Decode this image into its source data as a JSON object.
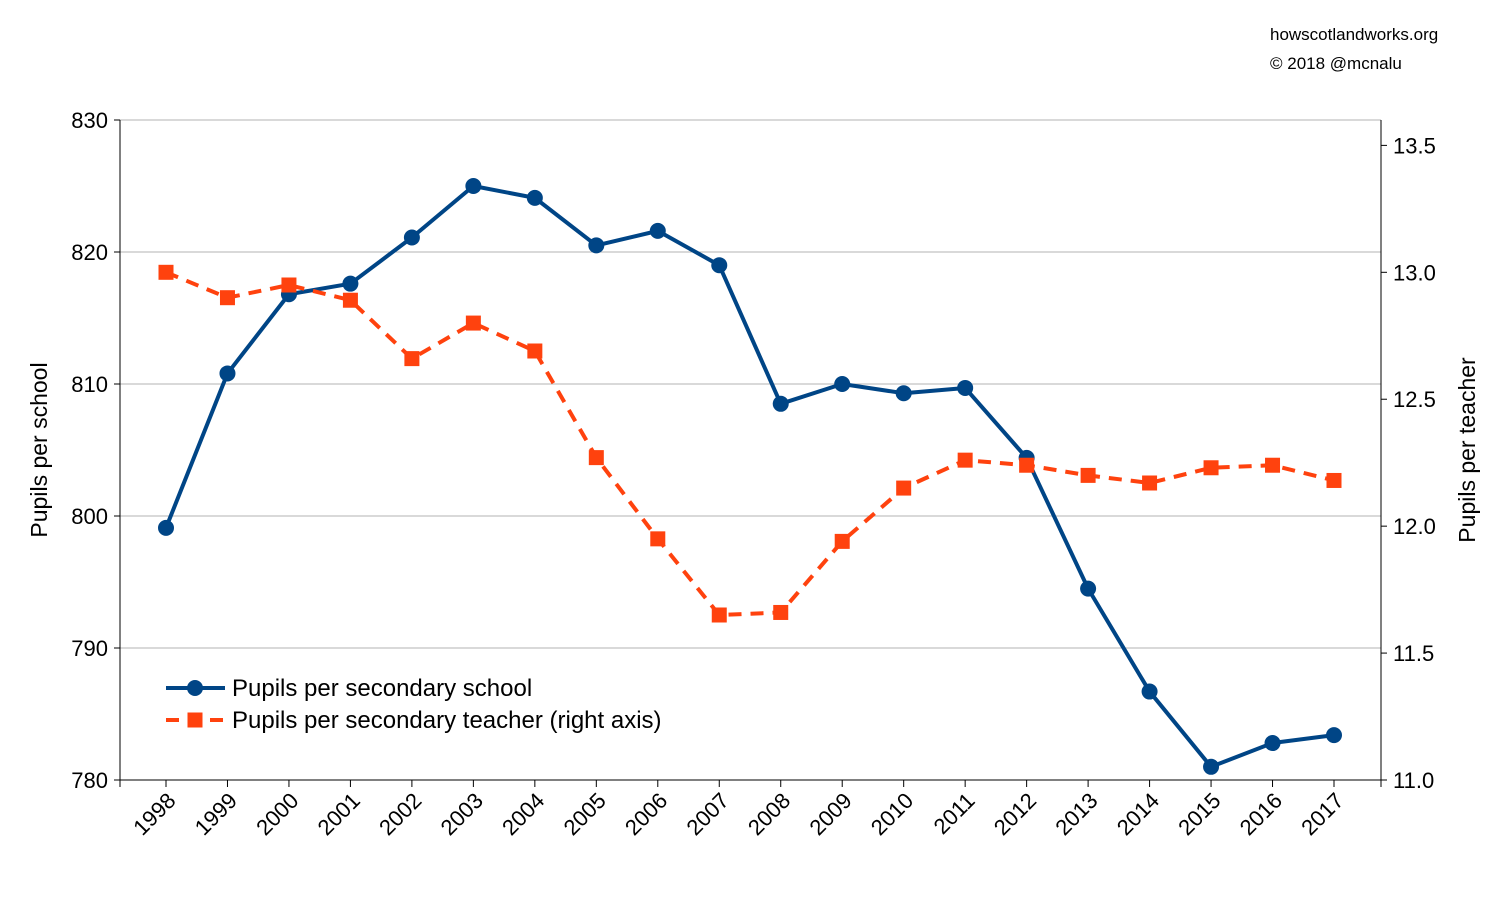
{
  "credits": {
    "line1": "howscotlandworks.org",
    "line2": "© 2018  @mcnalu"
  },
  "colors": {
    "school": "#004586",
    "teacher": "#ff420e",
    "grid": "#b3b3b3",
    "axis": "#000000"
  },
  "chart_data": {
    "type": "line",
    "x": [
      "1998",
      "1999",
      "2000",
      "2001",
      "2002",
      "2003",
      "2004",
      "2005",
      "2006",
      "2007",
      "2008",
      "2009",
      "2010",
      "2011",
      "2012",
      "2013",
      "2014",
      "2015",
      "2016",
      "2017"
    ],
    "ylabel": "Pupils per school",
    "ylabel_right": "Pupils per teacher",
    "ylim": [
      780,
      830
    ],
    "ylim_right": [
      11.0,
      13.6
    ],
    "yticks": [
      780,
      790,
      800,
      810,
      820,
      830
    ],
    "yticks_right": [
      "11.0",
      "11.5",
      "12.0",
      "12.5",
      "13.0",
      "13.5"
    ],
    "grid": true,
    "legend_position": "bottom-left",
    "series": [
      {
        "name": "Pupils per secondary school",
        "axis": "left",
        "marker": "circle",
        "line": "solid",
        "values": [
          799.1,
          810.8,
          816.8,
          817.6,
          821.1,
          825.0,
          824.1,
          820.5,
          821.6,
          819.0,
          808.5,
          810.0,
          809.3,
          809.7,
          804.4,
          794.5,
          786.7,
          781.0,
          782.8,
          783.4
        ]
      },
      {
        "name": "Pupils per secondary teacher (right axis)",
        "axis": "right",
        "marker": "square",
        "line": "dashed",
        "values": [
          13.0,
          12.9,
          12.95,
          12.89,
          12.66,
          12.8,
          12.69,
          12.27,
          11.95,
          11.65,
          11.66,
          11.94,
          12.15,
          12.26,
          12.24,
          12.2,
          12.17,
          12.23,
          12.24,
          12.18
        ]
      }
    ]
  }
}
